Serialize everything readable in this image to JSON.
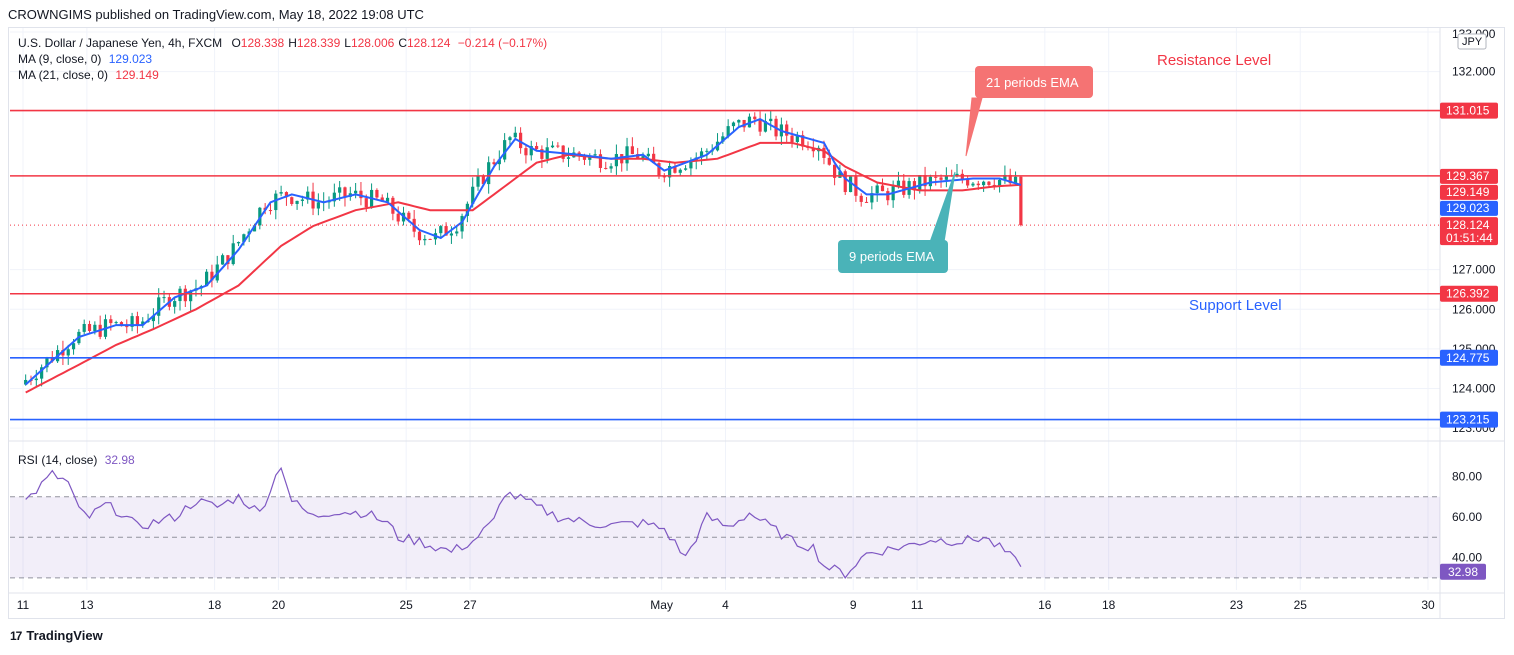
{
  "published": "CROWNGIMS published on TradingView.com, May 18, 2022 19:08 UTC",
  "symbol": {
    "name": "U.S. Dollar / Japanese Yen, 4h, FXCM",
    "ohlc": [
      {
        "k": "O",
        "v": "128.338"
      },
      {
        "k": "H",
        "v": "128.339"
      },
      {
        "k": "L",
        "v": "128.006"
      },
      {
        "k": "C",
        "v": "128.124"
      }
    ],
    "change": "−0.214 (−0.17%)",
    "currency": "JPY"
  },
  "indicators": {
    "ma9": {
      "label": "MA (9, close, 0)",
      "value": "129.023",
      "color": "#2962ff"
    },
    "ma21": {
      "label": "MA (21, close, 0)",
      "value": "129.149",
      "color": "#f23645"
    },
    "rsi": {
      "label": "RSI (14, close)",
      "value": "32.98",
      "color": "#7e57c2"
    }
  },
  "annotations": {
    "resistance": "Resistance Level",
    "support": "Support Level",
    "ema21": "21 periods EMA",
    "ema9": "9 periods EMA"
  },
  "brand": "TradingView",
  "chart_data": {
    "type": "candlestick",
    "price_axis": {
      "min": 122.7,
      "max": 133.1,
      "ticks": [
        "132.000",
        "127.000",
        "126.000",
        "125.000",
        "124.000",
        "123.000"
      ],
      "tick_values": [
        132,
        127,
        126,
        125,
        124,
        123
      ],
      "top_partial": "133.000"
    },
    "levels": [
      {
        "value": 131.015,
        "label": "131.015",
        "color": "#f23645"
      },
      {
        "value": 129.367,
        "label": "129.367",
        "color": "#f23645"
      },
      {
        "value": 126.392,
        "label": "126.392",
        "color": "#f23645"
      },
      {
        "value": 124.775,
        "label": "124.775",
        "color": "#2962ff"
      },
      {
        "value": 123.215,
        "label": "123.215",
        "color": "#2962ff"
      }
    ],
    "price_tags": [
      {
        "value": 129.149,
        "label": "129.149",
        "color": "#f23645"
      },
      {
        "value": 129.023,
        "label": "129.023",
        "color": "#2962ff"
      },
      {
        "value": 128.124,
        "label": "128.124",
        "sub": "01:51:44",
        "color": "#f23645"
      }
    ],
    "last_close": 128.124,
    "x_axis": {
      "labels": [
        "11",
        "13",
        "18",
        "20",
        "25",
        "27",
        "May",
        "4",
        "9",
        "11",
        "16",
        "18",
        "23",
        "25",
        "30"
      ],
      "positions": [
        0,
        12,
        36,
        48,
        72,
        84,
        120,
        132,
        156,
        168,
        192,
        204,
        228,
        240,
        264
      ],
      "bars_total": 264,
      "bars_shown": 188
    },
    "ma9_anchors": [
      [
        0,
        124.1
      ],
      [
        10,
        125.3
      ],
      [
        17,
        125.6
      ],
      [
        22,
        125.6
      ],
      [
        28,
        126.3
      ],
      [
        34,
        126.6
      ],
      [
        40,
        127.5
      ],
      [
        46,
        128.7
      ],
      [
        50,
        128.9
      ],
      [
        56,
        128.7
      ],
      [
        62,
        128.9
      ],
      [
        68,
        128.7
      ],
      [
        74,
        128.0
      ],
      [
        78,
        127.8
      ],
      [
        82,
        128.2
      ],
      [
        88,
        129.6
      ],
      [
        92,
        130.3
      ],
      [
        96,
        130.0
      ],
      [
        104,
        129.9
      ],
      [
        110,
        129.8
      ],
      [
        116,
        129.9
      ],
      [
        120,
        129.5
      ],
      [
        128,
        129.9
      ],
      [
        134,
        130.6
      ],
      [
        138,
        130.8
      ],
      [
        142,
        130.5
      ],
      [
        150,
        130.2
      ],
      [
        152,
        129.7
      ],
      [
        154,
        129.3
      ],
      [
        158,
        128.9
      ],
      [
        162,
        128.9
      ],
      [
        170,
        129.2
      ],
      [
        178,
        129.3
      ],
      [
        183,
        129.3
      ],
      [
        188,
        129.1
      ]
    ],
    "ma21_anchors": [
      [
        0,
        123.9
      ],
      [
        10,
        124.6
      ],
      [
        17,
        125.1
      ],
      [
        24,
        125.5
      ],
      [
        32,
        126.0
      ],
      [
        40,
        126.6
      ],
      [
        48,
        127.6
      ],
      [
        54,
        128.1
      ],
      [
        62,
        128.5
      ],
      [
        70,
        128.7
      ],
      [
        76,
        128.5
      ],
      [
        84,
        128.5
      ],
      [
        90,
        129.1
      ],
      [
        96,
        129.7
      ],
      [
        102,
        129.9
      ],
      [
        110,
        129.8
      ],
      [
        116,
        129.8
      ],
      [
        122,
        129.7
      ],
      [
        130,
        129.8
      ],
      [
        138,
        130.2
      ],
      [
        144,
        130.2
      ],
      [
        150,
        130.0
      ],
      [
        154,
        129.6
      ],
      [
        160,
        129.2
      ],
      [
        168,
        129.0
      ],
      [
        176,
        129.0
      ],
      [
        182,
        129.1
      ],
      [
        188,
        129.15
      ]
    ],
    "rsi_axis": {
      "min": 24,
      "max": 96,
      "ticks": [
        "80.00",
        "60.00",
        "40.00"
      ],
      "tick_values": [
        80,
        60,
        40
      ],
      "band": [
        30,
        70
      ],
      "mid": 50
    },
    "rsi_anchors": [
      [
        0,
        68
      ],
      [
        5,
        81
      ],
      [
        8,
        77
      ],
      [
        10,
        63
      ],
      [
        12,
        60
      ],
      [
        15,
        66
      ],
      [
        18,
        62
      ],
      [
        21,
        55
      ],
      [
        25,
        58
      ],
      [
        28,
        60
      ],
      [
        32,
        68
      ],
      [
        36,
        65
      ],
      [
        40,
        70
      ],
      [
        44,
        62
      ],
      [
        48,
        86
      ],
      [
        50,
        68
      ],
      [
        54,
        60
      ],
      [
        58,
        63
      ],
      [
        64,
        62
      ],
      [
        68,
        57
      ],
      [
        70,
        50
      ],
      [
        74,
        48
      ],
      [
        76,
        46
      ],
      [
        80,
        43
      ],
      [
        84,
        48
      ],
      [
        88,
        58
      ],
      [
        90,
        72
      ],
      [
        94,
        68
      ],
      [
        96,
        65
      ],
      [
        100,
        60
      ],
      [
        106,
        57
      ],
      [
        110,
        56
      ],
      [
        116,
        57
      ],
      [
        120,
        54
      ],
      [
        124,
        40
      ],
      [
        128,
        60
      ],
      [
        132,
        55
      ],
      [
        136,
        62
      ],
      [
        140,
        55
      ],
      [
        144,
        48
      ],
      [
        148,
        45
      ],
      [
        150,
        36
      ],
      [
        154,
        32
      ],
      [
        158,
        42
      ],
      [
        162,
        44
      ],
      [
        166,
        46
      ],
      [
        170,
        49
      ],
      [
        176,
        48
      ],
      [
        180,
        50
      ],
      [
        184,
        43
      ],
      [
        188,
        33
      ]
    ]
  }
}
